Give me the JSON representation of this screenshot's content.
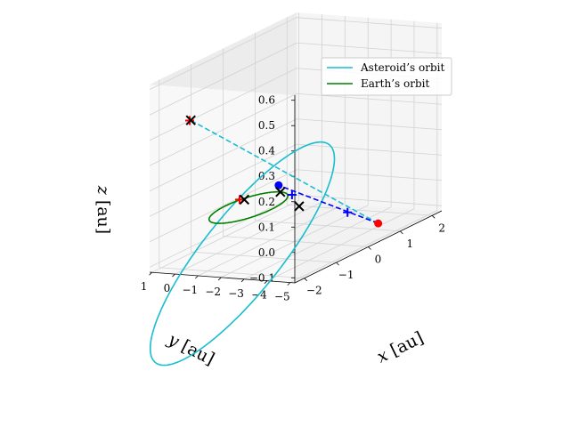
{
  "chart_data": {
    "type": "line",
    "projection": "3d",
    "title": "",
    "xlabel": "$x$ [au]",
    "ylabel": "$y$ [au]",
    "zlabel": "$z$ [au]",
    "xlim": [
      -2.3,
      2.3
    ],
    "ylim": [
      -5.2,
      1.1
    ],
    "zlim": [
      -0.12,
      0.62
    ],
    "xticks": [
      "−2",
      "−1",
      "0",
      "1",
      "2"
    ],
    "yticks": [
      "1",
      "0",
      "−1",
      "−2",
      "−3",
      "−4",
      "−5"
    ],
    "zticks": [
      "−0.1",
      "0.0",
      "0.1",
      "0.2",
      "0.3",
      "0.4",
      "0.5",
      "0.6"
    ],
    "grid": true,
    "legend_position": "upper right",
    "series": [
      {
        "name": "Asteroid’s orbit",
        "color": "#17becf",
        "style": "solid",
        "ellipse": {
          "a": 3.2,
          "e": 0.68,
          "i_deg": 6.5,
          "node_deg": 250,
          "peri_deg": 160
        }
      },
      {
        "name": "Earth’s orbit",
        "color": "#008000",
        "style": "solid",
        "ellipse": {
          "a": 1.0,
          "e": 0.0,
          "i_deg": 0,
          "node_deg": 0,
          "peri_deg": 0
        }
      },
      {
        "color": "#17becf",
        "style": "dashed",
        "points": [
          [
            0.78,
            -4.55,
            -0.08
          ],
          [
            -1.3,
            0.7,
            0.42
          ]
        ]
      },
      {
        "color": "#0000ff",
        "style": "dashed",
        "points": [
          [
            0.78,
            -4.55,
            -0.08
          ],
          [
            0.8,
            -0.2,
            0.04
          ]
        ]
      }
    ],
    "markers": [
      {
        "kind": "circle",
        "color": "#ff0000",
        "points": [
          [
            0.78,
            -4.55,
            -0.08
          ]
        ]
      },
      {
        "kind": "circle",
        "color": "#0000ff",
        "points": [
          [
            0.8,
            -0.2,
            0.04
          ]
        ]
      },
      {
        "kind": "plus",
        "color": "#0000ff",
        "points": [
          [
            0.0,
            -4.3,
            0.01
          ],
          [
            -0.8,
            -3.0,
            0.12
          ]
        ]
      },
      {
        "kind": "plus",
        "color": "#ff0000",
        "points": [
          [
            -1.0,
            -1.0,
            0.1
          ],
          [
            -1.32,
            0.72,
            0.42
          ]
        ]
      },
      {
        "kind": "x",
        "color": "#000000",
        "points": [
          [
            -0.98,
            -1.18,
            0.1
          ],
          [
            0.0,
            -2.2,
            0.02
          ],
          [
            1.0,
            0.0,
            0.0
          ],
          [
            -1.3,
            0.7,
            0.42
          ]
        ]
      }
    ]
  }
}
